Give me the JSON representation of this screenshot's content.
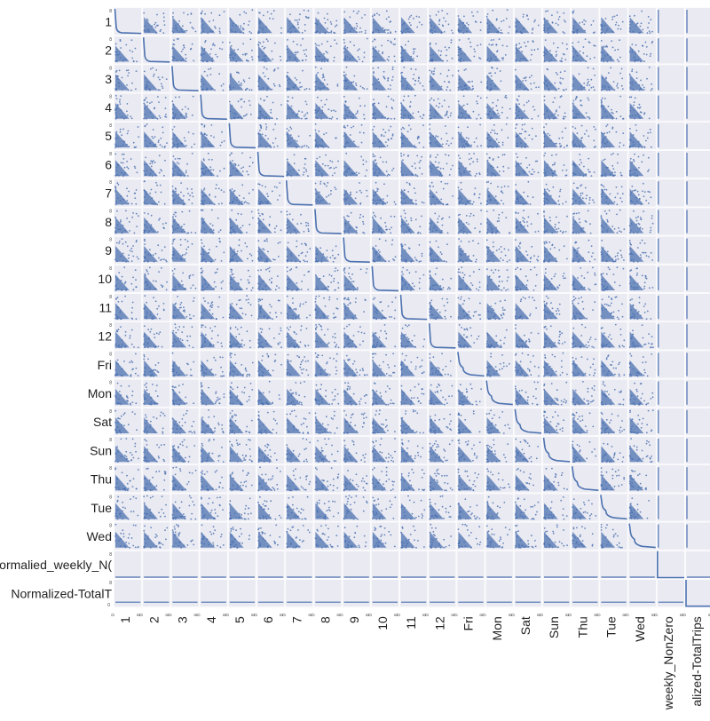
{
  "chart_data": {
    "type": "scatter",
    "kind": "scatter-matrix",
    "variables": [
      "1",
      "2",
      "3",
      "4",
      "5",
      "6",
      "7",
      "8",
      "9",
      "10",
      "11",
      "12",
      "Fri",
      "Mon",
      "Sat",
      "Sun",
      "Thu",
      "Tue",
      "Wed",
      "Normalied_weekly_NonZero",
      "Normalized-TotalTrips"
    ],
    "row_labels": [
      "1",
      "2",
      "3",
      "4",
      "5",
      "6",
      "7",
      "8",
      "9",
      "10",
      "11",
      "12",
      "Fri",
      "Mon",
      "Sat",
      "Sun",
      "Thu",
      "Tue",
      "Wed",
      "Normalied_weekly_N(",
      "Normalized-TotalT"
    ],
    "column_labels": [
      "1",
      "2",
      "3",
      "4",
      "5",
      "6",
      "7",
      "8",
      "9",
      "10",
      "11",
      "12",
      "Fri",
      "Mon",
      "Sat",
      "Sun",
      "Thu",
      "Tue",
      "Wed",
      "weekly_NonZero",
      "alized-TotalTrips"
    ],
    "diagonal": "cumulative distribution curve",
    "off_diagonal": "scatter",
    "tick_labels": {
      "min": "0",
      "max": "8"
    },
    "grid": true,
    "legend": "none",
    "colors": {
      "marker": "#4c72b0",
      "panel_background": "#eaeaf2",
      "page_background": "#ffffff",
      "text": "#222222"
    }
  }
}
